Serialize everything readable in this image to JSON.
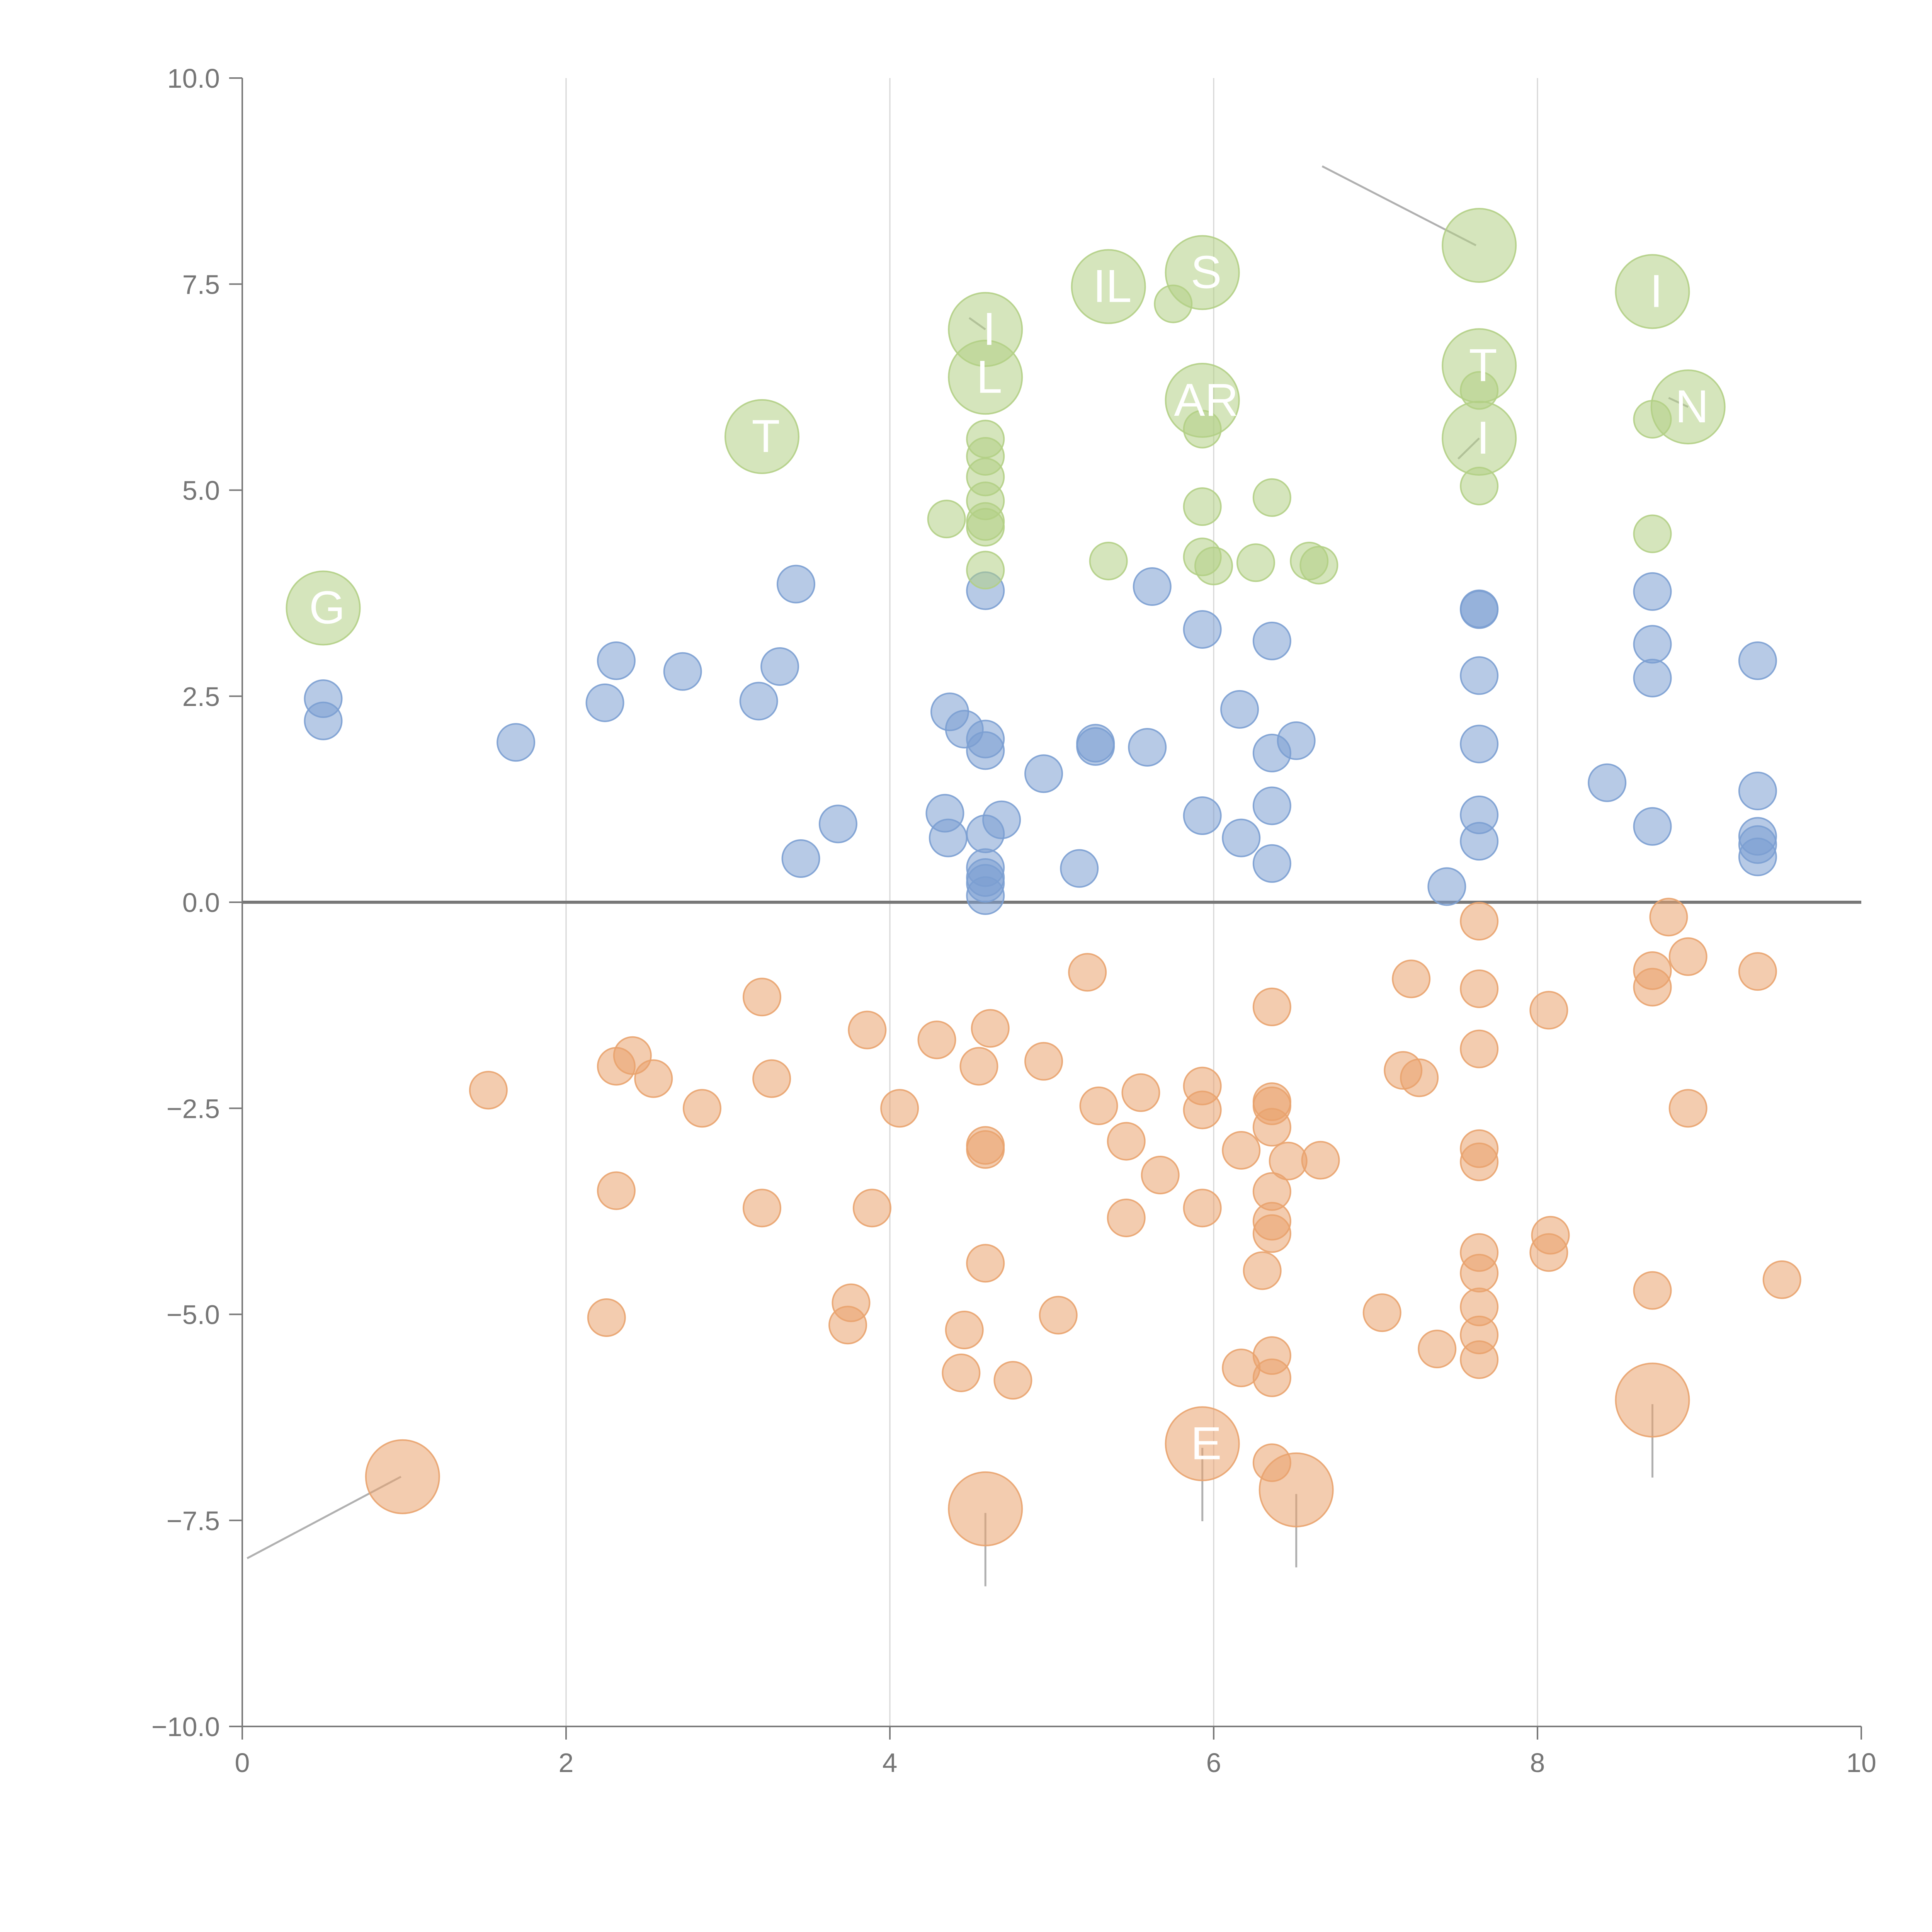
{
  "colors": {
    "positive": "#7b9fd2",
    "negative": "#e9a36e",
    "highlight": "#b2cf85",
    "axis": "#7a7a7a",
    "grid": "#d6d6d6",
    "background": "#ffffff"
  },
  "chart_data": {
    "type": "scatter",
    "title": "",
    "xlabel": "",
    "ylabel": "",
    "xlim": [
      0,
      10
    ],
    "ylim": [
      -10,
      10
    ],
    "x_ticks": [
      "0",
      "2",
      "4",
      "6",
      "8",
      "10"
    ],
    "x_tick_values": [
      0,
      2,
      4,
      6,
      8,
      10
    ],
    "y_ticks": [
      "10.0",
      "7.5",
      "5.0",
      "2.5",
      "0.0",
      "−2.5",
      "−5.0",
      "−7.5",
      "−10.0"
    ],
    "y_tick_values": [
      10,
      7.5,
      5,
      2.5,
      0,
      -2.5,
      -5,
      -7.5,
      -10
    ],
    "vertical_grid_at": [
      2,
      4,
      6,
      8
    ],
    "zero_line": 0,
    "series": [
      {
        "name": "positive",
        "color_key": "positive",
        "points": [
          [
            0.5,
            2.47
          ],
          [
            0.5,
            2.2
          ],
          [
            1.69,
            1.94
          ],
          [
            2.24,
            2.42
          ],
          [
            2.31,
            2.93
          ],
          [
            2.72,
            2.8
          ],
          [
            3.19,
            2.44
          ],
          [
            3.32,
            2.86
          ],
          [
            3.42,
            3.86
          ],
          [
            3.45,
            0.53
          ],
          [
            3.68,
            0.95
          ],
          [
            4.34,
            1.08
          ],
          [
            4.36,
            0.78
          ],
          [
            4.37,
            2.31
          ],
          [
            4.46,
            2.1
          ],
          [
            4.59,
            1.98
          ],
          [
            4.59,
            1.84
          ],
          [
            4.59,
            0.83
          ],
          [
            4.59,
            0.42
          ],
          [
            4.59,
            0.3
          ],
          [
            4.59,
            0.23
          ],
          [
            4.59,
            0.08
          ],
          [
            4.59,
            3.78
          ],
          [
            4.69,
            1.0
          ],
          [
            4.95,
            1.56
          ],
          [
            5.17,
            0.41
          ],
          [
            5.27,
            1.93
          ],
          [
            5.27,
            1.89
          ],
          [
            5.59,
            1.88
          ],
          [
            5.62,
            3.83
          ],
          [
            5.93,
            1.05
          ],
          [
            5.93,
            3.31
          ],
          [
            6.16,
            2.34
          ],
          [
            6.17,
            0.78
          ],
          [
            6.36,
            3.17
          ],
          [
            6.36,
            1.81
          ],
          [
            6.36,
            1.17
          ],
          [
            6.36,
            0.47
          ],
          [
            6.51,
            1.96
          ],
          [
            7.44,
            0.19
          ],
          [
            7.64,
            3.56
          ],
          [
            7.64,
            3.55
          ],
          [
            7.64,
            2.75
          ],
          [
            7.64,
            1.92
          ],
          [
            7.64,
            1.06
          ],
          [
            7.64,
            0.74
          ],
          [
            8.43,
            1.45
          ],
          [
            8.71,
            3.77
          ],
          [
            8.71,
            3.13
          ],
          [
            8.71,
            2.72
          ],
          [
            8.71,
            0.92
          ],
          [
            9.36,
            2.93
          ],
          [
            9.36,
            1.35
          ],
          [
            9.36,
            0.8
          ],
          [
            9.36,
            0.7
          ],
          [
            9.36,
            0.55
          ]
        ]
      },
      {
        "name": "negative",
        "color_key": "negative",
        "points": [
          [
            1.52,
            -2.28
          ],
          [
            2.31,
            -1.99
          ],
          [
            2.41,
            -1.86
          ],
          [
            2.54,
            -2.14
          ],
          [
            2.84,
            -2.5
          ],
          [
            2.31,
            -3.5
          ],
          [
            2.25,
            -5.04
          ],
          [
            3.21,
            -1.15
          ],
          [
            3.27,
            -2.14
          ],
          [
            3.21,
            -3.71
          ],
          [
            3.86,
            -1.55
          ],
          [
            3.89,
            -3.71
          ],
          [
            3.76,
            -4.86
          ],
          [
            3.74,
            -5.13
          ],
          [
            4.06,
            -2.5
          ],
          [
            4.29,
            -1.67
          ],
          [
            4.55,
            -1.99
          ],
          [
            4.62,
            -1.53
          ],
          [
            4.59,
            -2.95
          ],
          [
            4.59,
            -3.0
          ],
          [
            4.59,
            -4.38
          ],
          [
            4.46,
            -5.19
          ],
          [
            4.44,
            -5.71
          ],
          [
            4.76,
            -5.8
          ],
          [
            4.95,
            -1.93
          ],
          [
            5.04,
            -5.01
          ],
          [
            5.22,
            -0.85
          ],
          [
            5.29,
            -2.47
          ],
          [
            5.46,
            -2.9
          ],
          [
            5.46,
            -3.83
          ],
          [
            5.55,
            -2.31
          ],
          [
            5.67,
            -3.31
          ],
          [
            5.93,
            -2.23
          ],
          [
            5.93,
            -2.52
          ],
          [
            5.93,
            -3.71
          ],
          [
            6.17,
            -3.01
          ],
          [
            6.17,
            -5.65
          ],
          [
            6.3,
            -4.47
          ],
          [
            6.36,
            -1.27
          ],
          [
            6.36,
            -2.42
          ],
          [
            6.36,
            -2.47
          ],
          [
            6.36,
            -2.73
          ],
          [
            6.36,
            -3.51
          ],
          [
            6.36,
            -3.87
          ],
          [
            6.36,
            -4.02
          ],
          [
            6.36,
            -5.5
          ],
          [
            6.36,
            -5.77
          ],
          [
            6.36,
            -6.8
          ],
          [
            6.46,
            -3.14
          ],
          [
            6.66,
            -3.13
          ],
          [
            7.04,
            -4.98
          ],
          [
            7.17,
            -2.04
          ],
          [
            7.22,
            -0.93
          ],
          [
            7.27,
            -2.13
          ],
          [
            7.38,
            -5.42
          ],
          [
            7.64,
            -0.23
          ],
          [
            7.64,
            -1.05
          ],
          [
            7.64,
            -1.78
          ],
          [
            7.64,
            -2.99
          ],
          [
            7.64,
            -3.15
          ],
          [
            7.64,
            -4.25
          ],
          [
            7.64,
            -4.5
          ],
          [
            7.64,
            -4.91
          ],
          [
            7.64,
            -5.25
          ],
          [
            7.64,
            -5.55
          ],
          [
            8.07,
            -1.31
          ],
          [
            8.08,
            -4.04
          ],
          [
            8.07,
            -4.25
          ],
          [
            8.71,
            -0.83
          ],
          [
            8.71,
            -1.03
          ],
          [
            8.71,
            -4.71
          ],
          [
            8.81,
            -0.18
          ],
          [
            8.93,
            -0.66
          ],
          [
            8.93,
            -2.5
          ],
          [
            9.36,
            -0.84
          ],
          [
            9.51,
            -4.58
          ]
        ]
      },
      {
        "name": "highlight",
        "color_key": "highlight",
        "points": [
          [
            4.35,
            4.65
          ],
          [
            4.59,
            5.62
          ],
          [
            4.59,
            5.41
          ],
          [
            4.59,
            5.16
          ],
          [
            4.59,
            4.87
          ],
          [
            4.59,
            4.62
          ],
          [
            4.59,
            4.55
          ],
          [
            4.59,
            4.03
          ],
          [
            5.35,
            4.14
          ],
          [
            5.75,
            7.26
          ],
          [
            5.93,
            5.74
          ],
          [
            5.93,
            4.8
          ],
          [
            5.93,
            4.19
          ],
          [
            6.0,
            4.08
          ],
          [
            6.26,
            4.12
          ],
          [
            6.36,
            4.91
          ],
          [
            6.59,
            4.14
          ],
          [
            6.65,
            4.09
          ],
          [
            7.64,
            6.21
          ],
          [
            7.64,
            5.05
          ],
          [
            8.71,
            5.86
          ],
          [
            8.71,
            4.47
          ]
        ]
      }
    ],
    "large_markers": [
      {
        "group": "highlight",
        "x": 0.5,
        "y": 3.57,
        "label": "G"
      },
      {
        "group": "highlight",
        "x": 3.21,
        "y": 5.65,
        "label": "T"
      },
      {
        "group": "highlight",
        "x": 4.59,
        "y": 6.95,
        "label": "I"
      },
      {
        "group": "highlight",
        "x": 4.59,
        "y": 6.37,
        "label": "L"
      },
      {
        "group": "highlight",
        "x": 5.35,
        "y": 7.47,
        "label": "IL"
      },
      {
        "group": "highlight",
        "x": 5.93,
        "y": 7.64,
        "label": "S"
      },
      {
        "group": "highlight",
        "x": 5.93,
        "y": 6.09,
        "label": "AR"
      },
      {
        "group": "highlight",
        "x": 7.64,
        "y": 7.97,
        "label": ""
      },
      {
        "group": "highlight",
        "x": 7.64,
        "y": 6.51,
        "label": "T"
      },
      {
        "group": "highlight",
        "x": 7.64,
        "y": 5.63,
        "label": "I"
      },
      {
        "group": "highlight",
        "x": 8.71,
        "y": 7.41,
        "label": "I"
      },
      {
        "group": "highlight",
        "x": 8.93,
        "y": 6.01,
        "label": "N"
      },
      {
        "group": "negative",
        "x": 0.99,
        "y": -6.97,
        "label": ""
      },
      {
        "group": "negative",
        "x": 4.59,
        "y": -7.36,
        "label": ""
      },
      {
        "group": "negative",
        "x": 5.93,
        "y": -6.57,
        "label": "E"
      },
      {
        "group": "negative",
        "x": 6.51,
        "y": -7.13,
        "label": ""
      },
      {
        "group": "negative",
        "x": 8.71,
        "y": -6.04,
        "label": ""
      }
    ],
    "leader_lines": [
      {
        "from": [
          6.67,
          8.93
        ],
        "to": [
          7.62,
          7.97
        ]
      },
      {
        "from": [
          0.03,
          -7.96
        ],
        "to": [
          0.98,
          -6.97
        ]
      },
      {
        "from": [
          4.59,
          -7.41
        ],
        "to": [
          4.59,
          -8.3
        ]
      },
      {
        "from": [
          5.93,
          -6.62
        ],
        "to": [
          5.93,
          -7.51
        ]
      },
      {
        "from": [
          6.51,
          -7.18
        ],
        "to": [
          6.51,
          -8.07
        ]
      },
      {
        "from": [
          8.71,
          -6.09
        ],
        "to": [
          8.71,
          -6.98
        ]
      },
      {
        "from": [
          7.64,
          5.63
        ],
        "to": [
          7.51,
          5.38
        ]
      },
      {
        "from": [
          4.59,
          6.95
        ],
        "to": [
          4.49,
          7.09
        ]
      },
      {
        "from": [
          8.93,
          6.01
        ],
        "to": [
          8.81,
          6.12
        ]
      }
    ]
  }
}
